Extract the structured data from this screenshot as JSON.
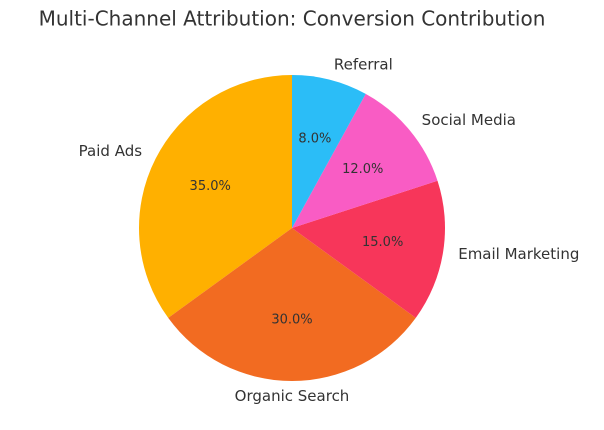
{
  "chart_data": {
    "type": "pie",
    "title": "Multi-Channel Attribution: Conversion Contribution",
    "categories": [
      "Paid Ads",
      "Organic Search",
      "Email Marketing",
      "Social Media",
      "Referral"
    ],
    "values": [
      35,
      30,
      15,
      12,
      8
    ],
    "value_labels": [
      "35.0%",
      "30.0%",
      "15.0%",
      "12.0%",
      "8.0%"
    ],
    "colors": [
      "#ffb000",
      "#f26b21",
      "#f7365a",
      "#f95cc4",
      "#2bbdf7"
    ]
  }
}
